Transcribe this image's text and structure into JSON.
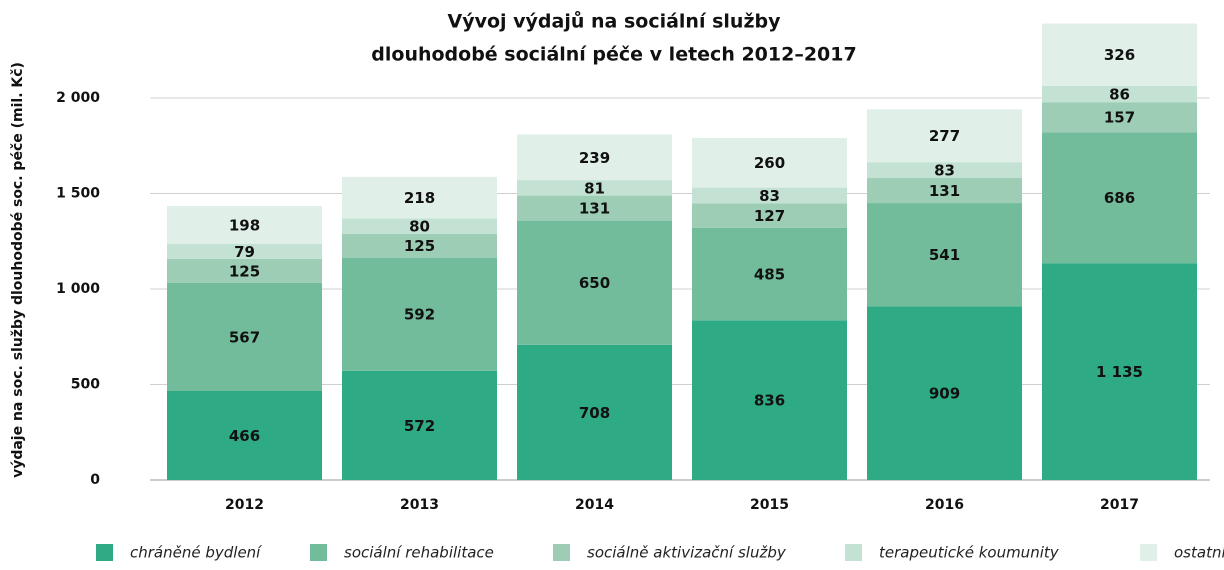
{
  "chart_data": {
    "type": "stacked_bar",
    "title": [
      "Vývoj výdajů na sociální služby",
      "dlouhodobé sociální péče v letech 2012–2017"
    ],
    "y_label": "výdaje na soc. služby dlouhodobé soc. péče (mil. Kč)",
    "categories": [
      "2012",
      "2013",
      "2014",
      "2015",
      "2016",
      "2017"
    ],
    "series": [
      {
        "name": "chráněné bydlení",
        "color": "#2eaa84",
        "values": [
          466,
          572,
          708,
          836,
          909,
          1135
        ],
        "value_labels": [
          "466",
          "572",
          "708",
          "836",
          "909",
          "1 135"
        ]
      },
      {
        "name": "sociální rehabilitace",
        "color": "#72bc9c",
        "values": [
          567,
          592,
          650,
          485,
          541,
          686
        ]
      },
      {
        "name": "sociálně aktivizační služby",
        "color": "#9dcdb4",
        "values": [
          125,
          125,
          131,
          127,
          131,
          157
        ]
      },
      {
        "name": "terapeutické koumunity",
        "color": "#c3e2d3",
        "values": [
          79,
          80,
          81,
          83,
          83,
          86
        ]
      },
      {
        "name": "ostatní",
        "color": "#e0efe8",
        "values": [
          198,
          218,
          239,
          260,
          277,
          326
        ]
      }
    ],
    "ylim": [
      0,
      2400
    ],
    "yticks": [
      0,
      500,
      {
        "value": 1000,
        "label": "1 000"
      },
      {
        "value": 1500,
        "label": "1 500"
      },
      {
        "value": 2000,
        "label": "2 000"
      }
    ],
    "grid": true
  }
}
